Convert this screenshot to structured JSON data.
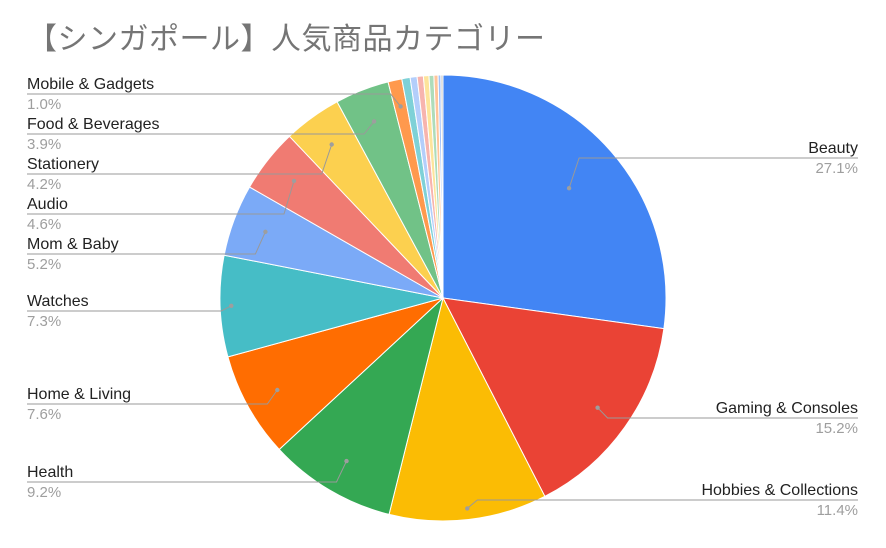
{
  "chart_data": {
    "type": "pie",
    "title": "【シンガポール】人気商品カテゴリー",
    "slices": [
      {
        "label": "Beauty",
        "value": 27.1,
        "display": "27.1%",
        "color": "#4285f4"
      },
      {
        "label": "Gaming & Consoles",
        "value": 15.2,
        "display": "15.2%",
        "color": "#ea4335"
      },
      {
        "label": "Hobbies & Collections",
        "value": 11.4,
        "display": "11.4%",
        "color": "#fbbc04"
      },
      {
        "label": "Health",
        "value": 9.2,
        "display": "9.2%",
        "color": "#34a853"
      },
      {
        "label": "Home & Living",
        "value": 7.6,
        "display": "7.6%",
        "color": "#ff6d01"
      },
      {
        "label": "Watches",
        "value": 7.3,
        "display": "7.3%",
        "color": "#46bdc6"
      },
      {
        "label": "Mom & Baby",
        "value": 5.2,
        "display": "5.2%",
        "color": "#7baaf7"
      },
      {
        "label": "Audio",
        "value": 4.6,
        "display": "4.6%",
        "color": "#f07b72"
      },
      {
        "label": "Stationery",
        "value": 4.2,
        "display": "4.2%",
        "color": "#fcd04f"
      },
      {
        "label": "Food & Beverages",
        "value": 3.9,
        "display": "3.9%",
        "color": "#71c287"
      },
      {
        "label": "Mobile & Gadgets",
        "value": 1.0,
        "display": "1.0%",
        "color": "#ff994d"
      },
      {
        "label": "",
        "value": 0.6,
        "color": "#7ed1d7"
      },
      {
        "label": "",
        "value": 0.5,
        "color": "#b3cefb"
      },
      {
        "label": "",
        "value": 0.45,
        "color": "#f7b4ae"
      },
      {
        "label": "",
        "value": 0.4,
        "color": "#fde49b"
      },
      {
        "label": "",
        "value": 0.35,
        "color": "#aedcba"
      },
      {
        "label": "",
        "value": 0.3,
        "color": "#ffc599"
      },
      {
        "label": "",
        "value": 0.2,
        "color": "#a1c2fa"
      },
      {
        "label": "",
        "value": 0.15,
        "color": "#c7c7c7"
      }
    ],
    "legend": "none"
  }
}
